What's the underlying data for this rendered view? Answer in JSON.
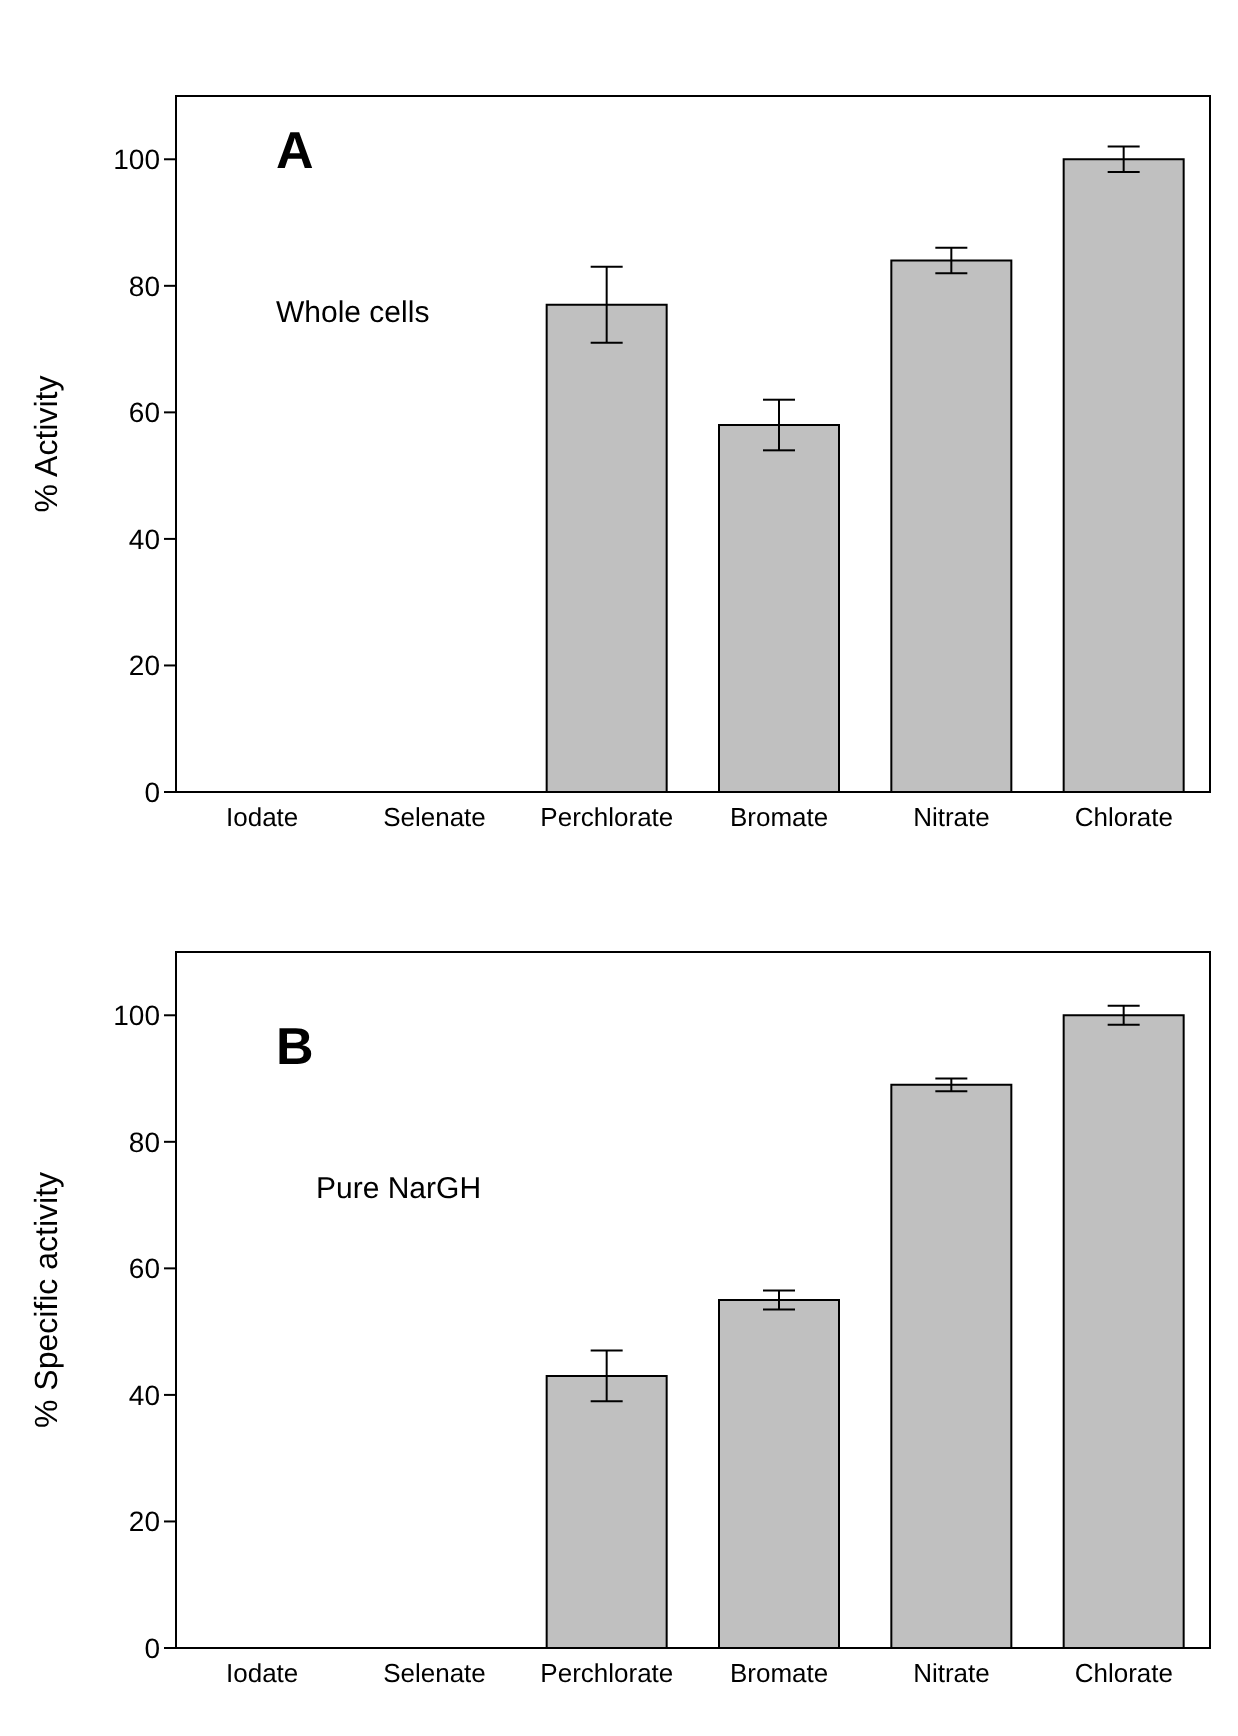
{
  "chart_data": [
    {
      "type": "bar",
      "title": "A",
      "annotations": [
        "Whole cells"
      ],
      "ylabel": "% Activity",
      "categories": [
        "Iodate",
        "Selenate",
        "Perchlorate",
        "Bromate",
        "Nitrate",
        "Chlorate"
      ],
      "values": [
        0,
        0,
        77,
        58,
        84,
        100
      ],
      "errors": [
        null,
        null,
        6,
        4,
        2,
        2
      ],
      "color": "#c0c0c0",
      "ylim": [
        0,
        110
      ],
      "yticks": [
        0,
        20,
        40,
        60,
        80,
        100
      ],
      "grid": false,
      "legend": false
    },
    {
      "type": "bar",
      "title": "B",
      "annotations": [
        "Pure NarGH"
      ],
      "ylabel": "% Specific activity",
      "categories": [
        "Iodate",
        "Selenate",
        "Perchlorate",
        "Bromate",
        "Nitrate",
        "Chlorate"
      ],
      "values": [
        0,
        0,
        43,
        55,
        89,
        100
      ],
      "errors": [
        null,
        null,
        4,
        1.5,
        1,
        1.5
      ],
      "color": "#c0c0c0",
      "ylim": [
        0,
        110
      ],
      "yticks": [
        0,
        20,
        40,
        60,
        80,
        100
      ],
      "grid": false,
      "legend": false
    }
  ]
}
